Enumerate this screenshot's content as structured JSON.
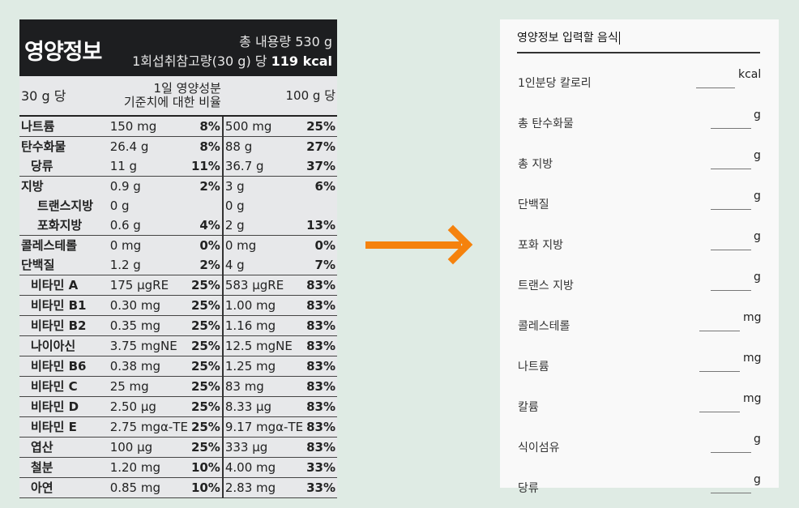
{
  "label": {
    "brand": "영양정보",
    "total": "총 내용량 530 g",
    "serving_prefix": "1회섭취참고량(30 g) 당",
    "serving_kcal": "119 kcal",
    "col_per": "30 g 당",
    "col_dv_1": "1일 영양성분",
    "col_dv_2": "기준치에 대한 비율",
    "col_100": "100 g 당",
    "rows": [
      {
        "n": "나트륨",
        "v": "150 mg",
        "p": "8%",
        "v2": "500 mg",
        "p2": "25%"
      },
      {
        "n": "탄수화물",
        "v": "26.4 g",
        "p": "8%",
        "v2": "88 g",
        "p2": "27%"
      },
      {
        "n": "당류",
        "v": "11 g",
        "p": "11%",
        "v2": "36.7 g",
        "p2": "37%"
      },
      {
        "n": "지방",
        "v": "0.9 g",
        "p": "2%",
        "v2": "3 g",
        "p2": "6%"
      },
      {
        "n": "트랜스지방",
        "v": "0 g",
        "p": "",
        "v2": "0 g",
        "p2": ""
      },
      {
        "n": "포화지방",
        "v": "0.6 g",
        "p": "4%",
        "v2": "2 g",
        "p2": "13%"
      },
      {
        "n": "콜레스테롤",
        "v": "0 mg",
        "p": "0%",
        "v2": "0 mg",
        "p2": "0%"
      },
      {
        "n": "단백질",
        "v": "1.2 g",
        "p": "2%",
        "v2": "4 g",
        "p2": "7%"
      },
      {
        "n": "비타민 A",
        "v": "175 μgRE",
        "p": "25%",
        "v2": "583 μgRE",
        "p2": "83%"
      },
      {
        "n": "비타민 B1",
        "v": "0.30 mg",
        "p": "25%",
        "v2": "1.00 mg",
        "p2": "83%"
      },
      {
        "n": "비타민 B2",
        "v": "0.35 mg",
        "p": "25%",
        "v2": "1.16 mg",
        "p2": "83%"
      },
      {
        "n": "나이아신",
        "v": "3.75 mgNE",
        "p": "25%",
        "v2": "12.5 mgNE",
        "p2": "83%"
      },
      {
        "n": "비타민 B6",
        "v": "0.38 mg",
        "p": "25%",
        "v2": "1.25 mg",
        "p2": "83%"
      },
      {
        "n": "비타민 C",
        "v": "25 mg",
        "p": "25%",
        "v2": "83 mg",
        "p2": "83%"
      },
      {
        "n": "비타민 D",
        "v": "2.50 μg",
        "p": "25%",
        "v2": "8.33 μg",
        "p2": "83%"
      },
      {
        "n": "비타민 E",
        "v": "2.75 mgα-TE",
        "p": "25%",
        "v2": "9.17 mgα-TE",
        "p2": "83%"
      },
      {
        "n": "엽산",
        "v": "100 μg",
        "p": "25%",
        "v2": "333 μg",
        "p2": "83%"
      },
      {
        "n": "철분",
        "v": "1.20 mg",
        "p": "10%",
        "v2": "4.00 mg",
        "p2": "33%"
      },
      {
        "n": "아연",
        "v": "0.85 mg",
        "p": "10%",
        "v2": "2.83 mg",
        "p2": "33%"
      }
    ]
  },
  "form": {
    "food_name": "영양정보 입력할 음식",
    "fields": [
      {
        "label": "1인분당 칼로리",
        "unit": "kcal"
      },
      {
        "label": "총 탄수화물",
        "unit": "g"
      },
      {
        "label": "총 지방",
        "unit": "g"
      },
      {
        "label": "단백질",
        "unit": "g"
      },
      {
        "label": "포화 지방",
        "unit": "g"
      },
      {
        "label": "트랜스 지방",
        "unit": "g"
      },
      {
        "label": "콜레스테롤",
        "unit": "mg"
      },
      {
        "label": "나트륨",
        "unit": "mg"
      },
      {
        "label": "칼륨",
        "unit": "mg"
      },
      {
        "label": "식이섬유",
        "unit": "g"
      },
      {
        "label": "당류",
        "unit": "g"
      }
    ]
  },
  "colors": {
    "background": "#dfebe4",
    "arrow": "#f5820d",
    "panel": "#f9f9f9",
    "label_header": "#1d1e20"
  },
  "icons": {
    "arrow": "right-arrow-icon"
  }
}
